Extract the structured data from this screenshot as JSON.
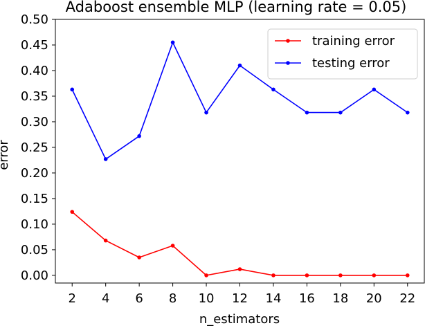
{
  "chart_data": {
    "type": "line",
    "title": "Adaboost ensemble MLP (learning rate = 0.05)",
    "xlabel": "n_estimators",
    "ylabel": "error",
    "x": [
      2,
      4,
      6,
      8,
      10,
      12,
      14,
      16,
      18,
      20,
      22
    ],
    "xlim": [
      1,
      23
    ],
    "ylim": [
      -0.015,
      0.5
    ],
    "xticks": [
      2,
      4,
      6,
      8,
      10,
      12,
      14,
      16,
      18,
      20,
      22
    ],
    "yticks": [
      "0.00",
      "0.05",
      "0.10",
      "0.15",
      "0.20",
      "0.25",
      "0.30",
      "0.35",
      "0.40",
      "0.45",
      "0.50"
    ],
    "grid": false,
    "legend_position": "top-right",
    "series": [
      {
        "name": "training error",
        "color": "#ff0000",
        "values": [
          0.124,
          0.068,
          0.035,
          0.058,
          0.0,
          0.012,
          0.0,
          0.0,
          0.0,
          0.0,
          0.0
        ]
      },
      {
        "name": "testing error",
        "color": "#0000ff",
        "values": [
          0.363,
          0.227,
          0.272,
          0.455,
          0.318,
          0.41,
          0.363,
          0.318,
          0.318,
          0.363,
          0.318
        ]
      }
    ]
  }
}
